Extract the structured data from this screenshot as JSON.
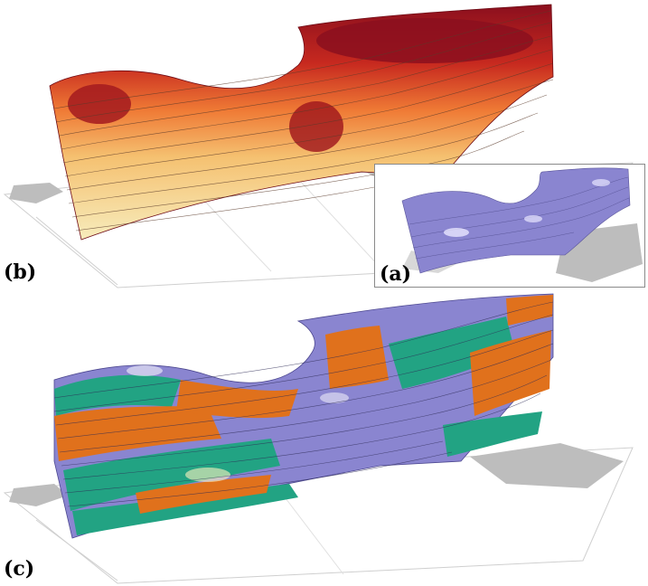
{
  "panels": [
    {
      "id": "b",
      "label": "(b)"
    },
    {
      "id": "a",
      "label": "(a)"
    },
    {
      "id": "c",
      "label": "(c)"
    }
  ],
  "colors": {
    "warm_dark": "#8b0f1e",
    "warm_mid": "#d9472a",
    "warm_light": "#f2b35f",
    "warm_pale": "#f6e7b0",
    "lavender": "#8a85d0",
    "teal": "#22a383",
    "orange": "#e0711c",
    "land": "#bdbdbd"
  }
}
